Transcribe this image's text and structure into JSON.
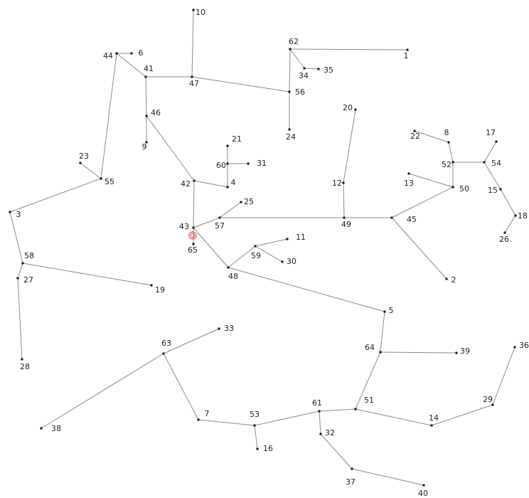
{
  "nodes": [
    {
      "label": "10"
    },
    {
      "label": "62"
    },
    {
      "label": "1"
    },
    {
      "label": "34"
    },
    {
      "label": "35"
    },
    {
      "label": "44"
    },
    {
      "label": "6"
    },
    {
      "label": "41"
    },
    {
      "label": "47"
    },
    {
      "label": "56"
    },
    {
      "label": "46"
    },
    {
      "label": "9"
    },
    {
      "label": "20"
    },
    {
      "label": "24"
    },
    {
      "label": "22"
    },
    {
      "label": "8"
    },
    {
      "label": "17"
    },
    {
      "label": "21"
    },
    {
      "label": "23"
    },
    {
      "label": "60"
    },
    {
      "label": "31"
    },
    {
      "label": "52"
    },
    {
      "label": "54"
    },
    {
      "label": "13"
    },
    {
      "label": "55"
    },
    {
      "label": "42"
    },
    {
      "label": "4"
    },
    {
      "label": "12"
    },
    {
      "label": "50"
    },
    {
      "label": "15"
    },
    {
      "label": "25"
    },
    {
      "label": "3"
    },
    {
      "label": "18"
    },
    {
      "label": "45"
    },
    {
      "label": "49"
    },
    {
      "label": "57"
    },
    {
      "label": "43"
    },
    {
      "label": "26"
    },
    {
      "label": "65"
    },
    {
      "label": "11"
    },
    {
      "label": "59"
    },
    {
      "label": "30"
    },
    {
      "label": "48"
    },
    {
      "label": "58"
    },
    {
      "label": "27"
    },
    {
      "label": "2"
    },
    {
      "label": "19"
    },
    {
      "label": "5"
    },
    {
      "label": "33"
    },
    {
      "label": "63"
    },
    {
      "label": "64"
    },
    {
      "label": "39"
    },
    {
      "label": "36"
    },
    {
      "label": "28"
    },
    {
      "label": "29"
    },
    {
      "label": "51"
    },
    {
      "label": "61"
    },
    {
      "label": "7"
    },
    {
      "label": "53"
    },
    {
      "label": "14"
    },
    {
      "label": "38"
    },
    {
      "label": "32"
    },
    {
      "label": "16"
    },
    {
      "label": "37"
    },
    {
      "label": "40"
    }
  ]
}
